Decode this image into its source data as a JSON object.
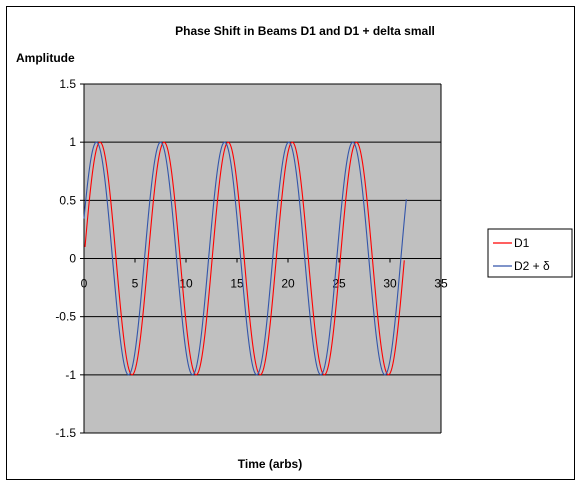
{
  "chart_data": {
    "type": "line",
    "title": "Phase Shift in Beams D1 and D1 + delta small",
    "ylabel": "Amplitude",
    "xlabel": "Time (arbs)",
    "xlim": [
      0,
      35
    ],
    "ylim": [
      -1.5,
      1.5
    ],
    "x_ticks": [
      "0",
      "5",
      "10",
      "15",
      "20",
      "25",
      "30",
      "35"
    ],
    "y_ticks": [
      "1.5",
      "1",
      "0.5",
      "0",
      "-0.5",
      "-1",
      "-1.5"
    ],
    "grid": "horizontal",
    "plot_background": "#c0c0c0",
    "legend_position": "right",
    "series": [
      {
        "name": "D1",
        "color": "#ff0000",
        "function": "sin",
        "x_start": 0.1,
        "x_end": 31.4,
        "phase": 0.0
      },
      {
        "name": "D2 + δ",
        "color": "#3355aa",
        "function": "sin",
        "x_start": 0.0,
        "x_end": 31.6,
        "phase": 0.35
      }
    ]
  }
}
